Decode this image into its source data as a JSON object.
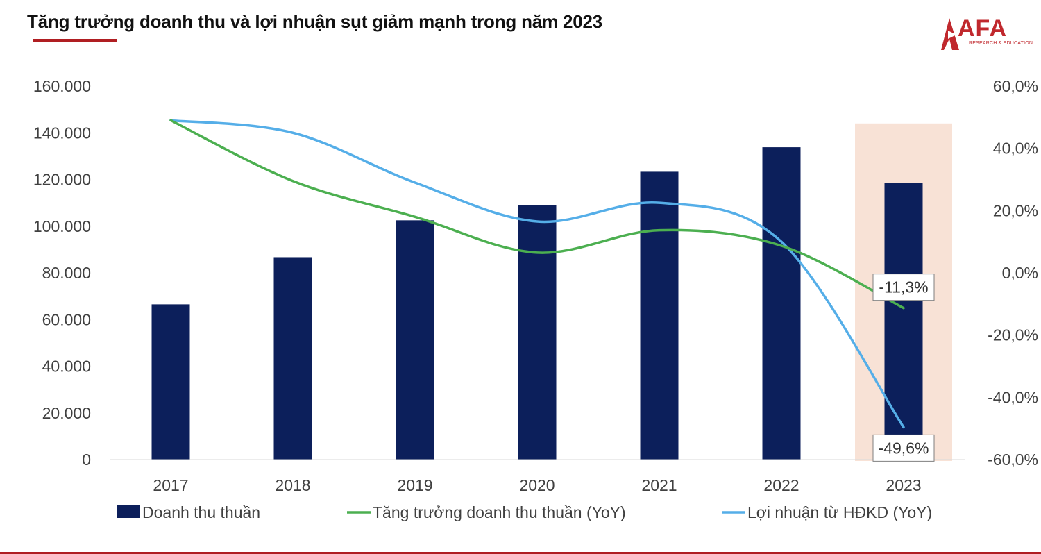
{
  "title": "Tăng trưởng doanh thu và lợi nhuận sụt giảm mạnh trong năm 2023",
  "logo": {
    "text": "AFA",
    "subtitle": "RESEARCH & EDUCATION"
  },
  "colors": {
    "bar": "#0c1f5b",
    "revenue_growth": "#4caf50",
    "profit_growth": "#55aee8",
    "highlight": "#f8e2d6",
    "brand": "#b01e22"
  },
  "chart_data": {
    "type": "bar",
    "categories": [
      "2017",
      "2018",
      "2019",
      "2020",
      "2021",
      "2022",
      "2023"
    ],
    "left_axis": {
      "min": 0,
      "max": 160000,
      "ticks": [
        "0",
        "20.000",
        "40.000",
        "60.000",
        "80.000",
        "100.000",
        "120.000",
        "140.000",
        "160.000"
      ]
    },
    "right_axis": {
      "min": -60,
      "max": 60,
      "ticks": [
        "-60,0%",
        "-40,0%",
        "-20,0%",
        "0,0%",
        "20,0%",
        "40,0%",
        "60,0%"
      ]
    },
    "series": [
      {
        "name": "Doanh thu thuần",
        "type": "bar",
        "axis": "left",
        "values": [
          66500,
          86700,
          102500,
          109000,
          123300,
          133800,
          118600
        ]
      },
      {
        "name": "Tăng trưởng doanh thu thuần (YoY)",
        "type": "line",
        "axis": "right",
        "values": [
          49.0,
          29.5,
          18.0,
          6.5,
          13.7,
          8.7,
          -11.3
        ]
      },
      {
        "name": "Lợi nhuận từ HĐKD (YoY)",
        "type": "line",
        "axis": "right",
        "values": [
          49.0,
          45.0,
          29.0,
          16.5,
          22.5,
          10.0,
          -49.6
        ]
      }
    ],
    "annotations": [
      {
        "series": 1,
        "index": 6,
        "label": "-11,3%"
      },
      {
        "series": 2,
        "index": 6,
        "label": "-49,6%"
      }
    ],
    "highlight_category": "2023",
    "legend_position": "bottom",
    "grid": false
  }
}
